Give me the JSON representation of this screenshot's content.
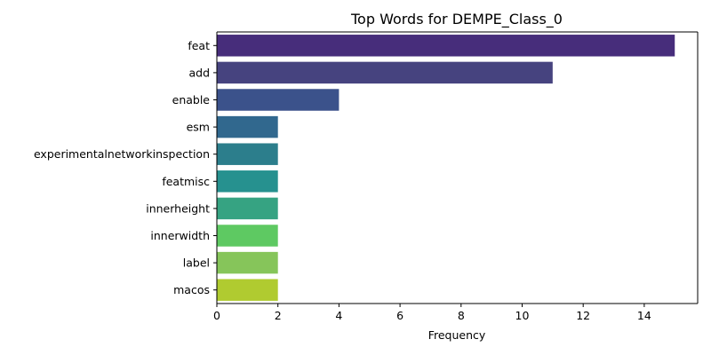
{
  "chart_data": {
    "type": "bar",
    "orientation": "horizontal",
    "title": "Top Words for DEMPE_Class_0",
    "xlabel": "Frequency",
    "ylabel": "",
    "categories": [
      "feat",
      "add",
      "enable",
      "esm",
      "experimentalnetworkinspection",
      "featmisc",
      "innerheight",
      "innerwidth",
      "label",
      "macos"
    ],
    "values": [
      15,
      11,
      4,
      2,
      2,
      2,
      2,
      2,
      2,
      2
    ],
    "xlim": [
      0,
      15.75
    ],
    "xticks": [
      0,
      2,
      4,
      6,
      8,
      10,
      12,
      14
    ],
    "grid": false,
    "legend": "none",
    "palette": "viridis",
    "bar_colors": [
      "#472d7b",
      "#46437f",
      "#3b528b",
      "#31688e",
      "#2c7e8c",
      "#26918f",
      "#36a382",
      "#5ec962",
      "#86c55a",
      "#b0cb30"
    ]
  }
}
